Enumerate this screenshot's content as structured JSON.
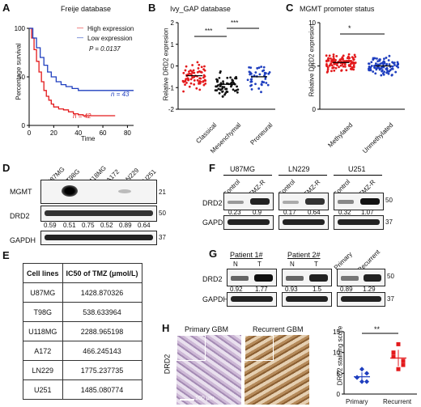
{
  "figure": {
    "panel_labels": {
      "A": "A",
      "B": "B",
      "C": "C",
      "D": "D",
      "E": "E",
      "F": "F",
      "G": "G",
      "H": "H"
    },
    "colors": {
      "red": "#e31a1c",
      "blue": "#1f3fbf",
      "black": "#111111"
    }
  },
  "panel_a": {
    "title": "Freije database",
    "legend": {
      "high": "High expression",
      "low": "Low expression",
      "pvalue": "P = 0.0137"
    },
    "n_blue": "n = 43",
    "n_red": "n = 42",
    "ylabel": "Percentage survival",
    "xlabel": "Time",
    "yticks": [
      "0",
      "50",
      "100"
    ],
    "xticks": [
      "0",
      "20",
      "40",
      "60",
      "80"
    ]
  },
  "panel_b": {
    "title": "Ivy_GAP database",
    "ylabel": "Relative DRD2 expresion",
    "yticks": [
      "2",
      "1",
      "0",
      "-1",
      "-2"
    ],
    "groups": [
      "Classical",
      "Mesenchymal",
      "Proneural"
    ],
    "sig": [
      "***",
      "***"
    ]
  },
  "panel_c": {
    "title": "MGMT promoter status",
    "ylabel": "Relative DRD2 expresion",
    "yticks": [
      "10",
      "5",
      "0"
    ],
    "groups": [
      "Methylated",
      "Unmethylated"
    ],
    "sig": "*"
  },
  "panel_d": {
    "lanes": [
      "U87MG",
      "T98G",
      "U118MG",
      "A172",
      "LN229",
      "U251"
    ],
    "rows": [
      "MGMT",
      "DRD2",
      "GAPDH"
    ],
    "sizes": [
      "21",
      "50",
      "37"
    ],
    "quant": [
      "0.59",
      "0.51",
      "0.75",
      "0.52",
      "0.89",
      "0.64"
    ]
  },
  "panel_e": {
    "headers": [
      "Cell lines",
      "IC50 of TMZ (μmol/L)"
    ],
    "rows": [
      [
        "U87MG",
        "1428.870326"
      ],
      [
        "T98G",
        "538.633964"
      ],
      [
        "U118MG",
        "2288.965198"
      ],
      [
        "A172",
        "466.245143"
      ],
      [
        "LN229",
        "1775.237735"
      ],
      [
        "U251",
        "1485.080774"
      ]
    ]
  },
  "panel_f": {
    "groups": [
      "U87MG",
      "LN229",
      "U251"
    ],
    "lanes": [
      "Control",
      "TMZ-R"
    ],
    "rows": [
      "DRD2",
      "GAPDH"
    ],
    "sizes": [
      "50",
      "37"
    ],
    "quant": [
      "0.23",
      "0.9",
      "0.17",
      "0.64",
      "0.32",
      "1.07"
    ]
  },
  "panel_g": {
    "groups": [
      "Patient 1#",
      "Patient 2#"
    ],
    "lanes": [
      "N",
      "T",
      "N",
      "T"
    ],
    "extra_lanes": [
      "Primary",
      "Recurrent"
    ],
    "rows": [
      "DRD2",
      "GAPDH"
    ],
    "sizes": [
      "50",
      "37"
    ],
    "quant": [
      "0.92",
      "1.77",
      "0.93",
      "1.5",
      "0.89",
      "1.29"
    ]
  },
  "panel_h": {
    "image_titles": [
      "Primary GBM",
      "Recurrent GBM"
    ],
    "side_label": "DRD2",
    "scalebar": "100 μm",
    "ylabel": "DRD2 staining score",
    "yticks": [
      "0",
      "5",
      "10",
      "15"
    ],
    "groups": [
      "Primary",
      "Recurrent"
    ],
    "sig": "**"
  },
  "chart_data": [
    {
      "type": "line",
      "title": "Freije database",
      "xlabel": "Time",
      "ylabel": "Percentage survival",
      "xlim": [
        0,
        85
      ],
      "ylim": [
        0,
        100
      ],
      "series": [
        {
          "name": "High expression",
          "color": "#e31a1c",
          "x": [
            0,
            2,
            4,
            6,
            8,
            10,
            12,
            14,
            16,
            18,
            20,
            24,
            28,
            32,
            36,
            40,
            44,
            48,
            70
          ],
          "y": [
            100,
            90,
            78,
            66,
            55,
            45,
            36,
            30,
            26,
            22,
            19,
            17,
            16,
            14,
            12,
            11,
            10,
            10,
            10
          ]
        },
        {
          "name": "Low expression",
          "color": "#1f3fbf",
          "x": [
            0,
            3,
            6,
            9,
            12,
            15,
            18,
            22,
            26,
            30,
            35,
            40,
            50,
            60,
            85
          ],
          "y": [
            100,
            90,
            80,
            70,
            62,
            55,
            50,
            45,
            42,
            40,
            38,
            36,
            36,
            36,
            36
          ]
        }
      ]
    },
    {
      "type": "scatter",
      "title": "Ivy_GAP database",
      "ylabel": "Relative DRD2 expresion",
      "ylim": [
        -2,
        2
      ],
      "categories": [
        "Classical",
        "Mesenchymal",
        "Proneural"
      ],
      "series": [
        {
          "name": "Classical",
          "mean": -0.45
        },
        {
          "name": "Mesenchymal",
          "mean": -0.85
        },
        {
          "name": "Proneural",
          "mean": -0.5
        }
      ]
    },
    {
      "type": "scatter",
      "title": "MGMT promoter status",
      "ylabel": "Relative DRD2 expresion",
      "ylim": [
        0,
        10
      ],
      "categories": [
        "Methylated",
        "Unmethylated"
      ],
      "series": [
        {
          "name": "Methylated",
          "mean": 5.4
        },
        {
          "name": "Unmethylated",
          "mean": 5.0
        }
      ]
    },
    {
      "type": "scatter",
      "ylabel": "DRD2 staining score",
      "ylim": [
        0,
        15
      ],
      "categories": [
        "Primary",
        "Recurrent"
      ],
      "series": [
        {
          "name": "Primary",
          "values": [
            4,
            3,
            5,
            4,
            6,
            3
          ]
        },
        {
          "name": "Recurrent",
          "values": [
            9,
            12,
            8,
            10,
            6,
            7
          ]
        }
      ]
    }
  ]
}
